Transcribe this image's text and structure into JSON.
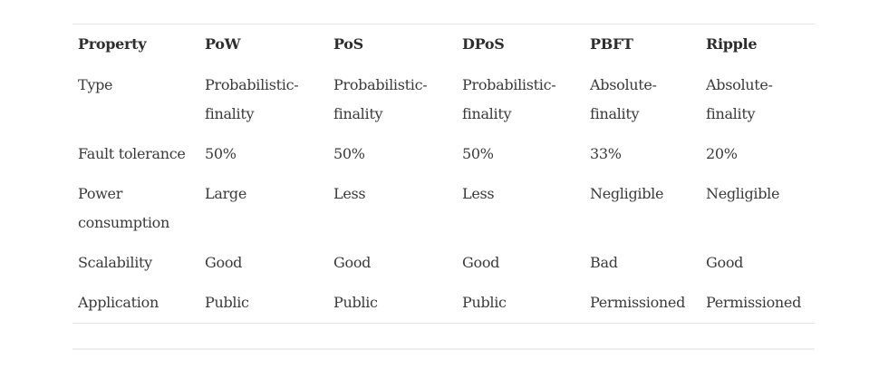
{
  "table": {
    "headers": [
      "Property",
      "PoW",
      "PoS",
      "DPoS",
      "PBFT",
      "Ripple"
    ],
    "rows": [
      [
        "Type",
        "Probabilistic-finality",
        "Probabilistic-finality",
        "Probabilistic-finality",
        "Absolute-finality",
        "Absolute-finality"
      ],
      [
        "Fault tolerance",
        "50%",
        "50%",
        "50%",
        "33%",
        "20%"
      ],
      [
        "Power consumption",
        "Large",
        "Less",
        "Less",
        "Negligible",
        "Negligible"
      ],
      [
        "Scalability",
        "Good",
        "Good",
        "Good",
        "Bad",
        "Good"
      ],
      [
        "Application",
        "Public",
        "Public",
        "Public",
        "Permissioned",
        "Permissioned"
      ]
    ]
  }
}
